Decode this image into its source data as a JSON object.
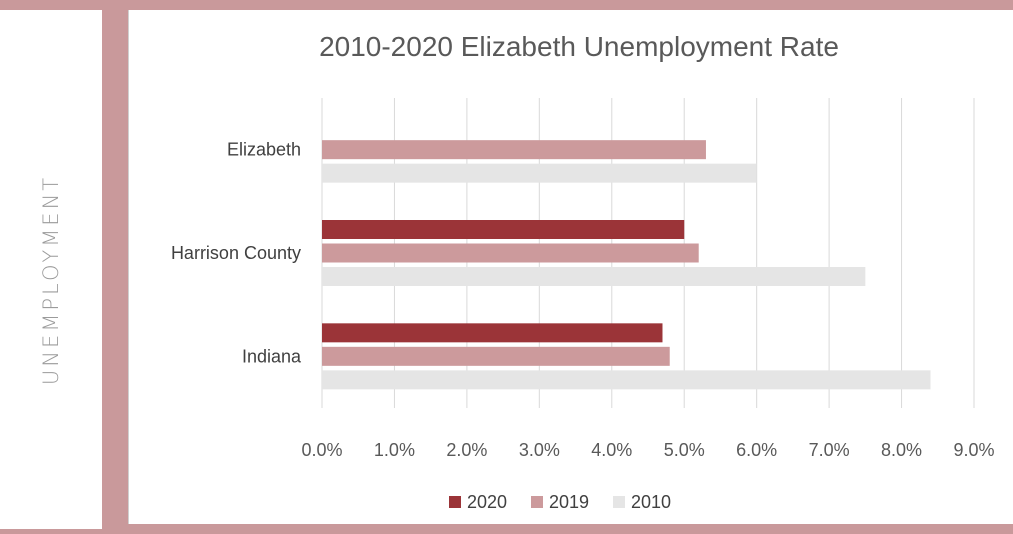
{
  "side": {
    "label": "UNEMPLOYMENT"
  },
  "colors": {
    "background": "#c9999b",
    "s2020": "#9b3438",
    "s2019": "#cc9a9c",
    "s2010": "#e5e5e5"
  },
  "chart_data": {
    "type": "bar",
    "orientation": "horizontal",
    "title": "2010-2020 Elizabeth Unemployment Rate",
    "categories": [
      "Elizabeth",
      "Harrison County",
      "Indiana"
    ],
    "series": [
      {
        "name": "2020",
        "color": "#9b3438",
        "values": [
          null,
          0.05,
          0.047
        ]
      },
      {
        "name": "2019",
        "color": "#cc9a9c",
        "values": [
          0.053,
          0.052,
          0.048
        ]
      },
      {
        "name": "2010",
        "color": "#e5e5e5",
        "values": [
          0.06,
          0.075,
          0.084
        ]
      }
    ],
    "xlim": [
      0,
      0.09
    ],
    "xticks": [
      "0.0%",
      "1.0%",
      "2.0%",
      "3.0%",
      "4.0%",
      "5.0%",
      "6.0%",
      "7.0%",
      "8.0%",
      "9.0%"
    ],
    "grid": true,
    "legend_position": "bottom"
  }
}
